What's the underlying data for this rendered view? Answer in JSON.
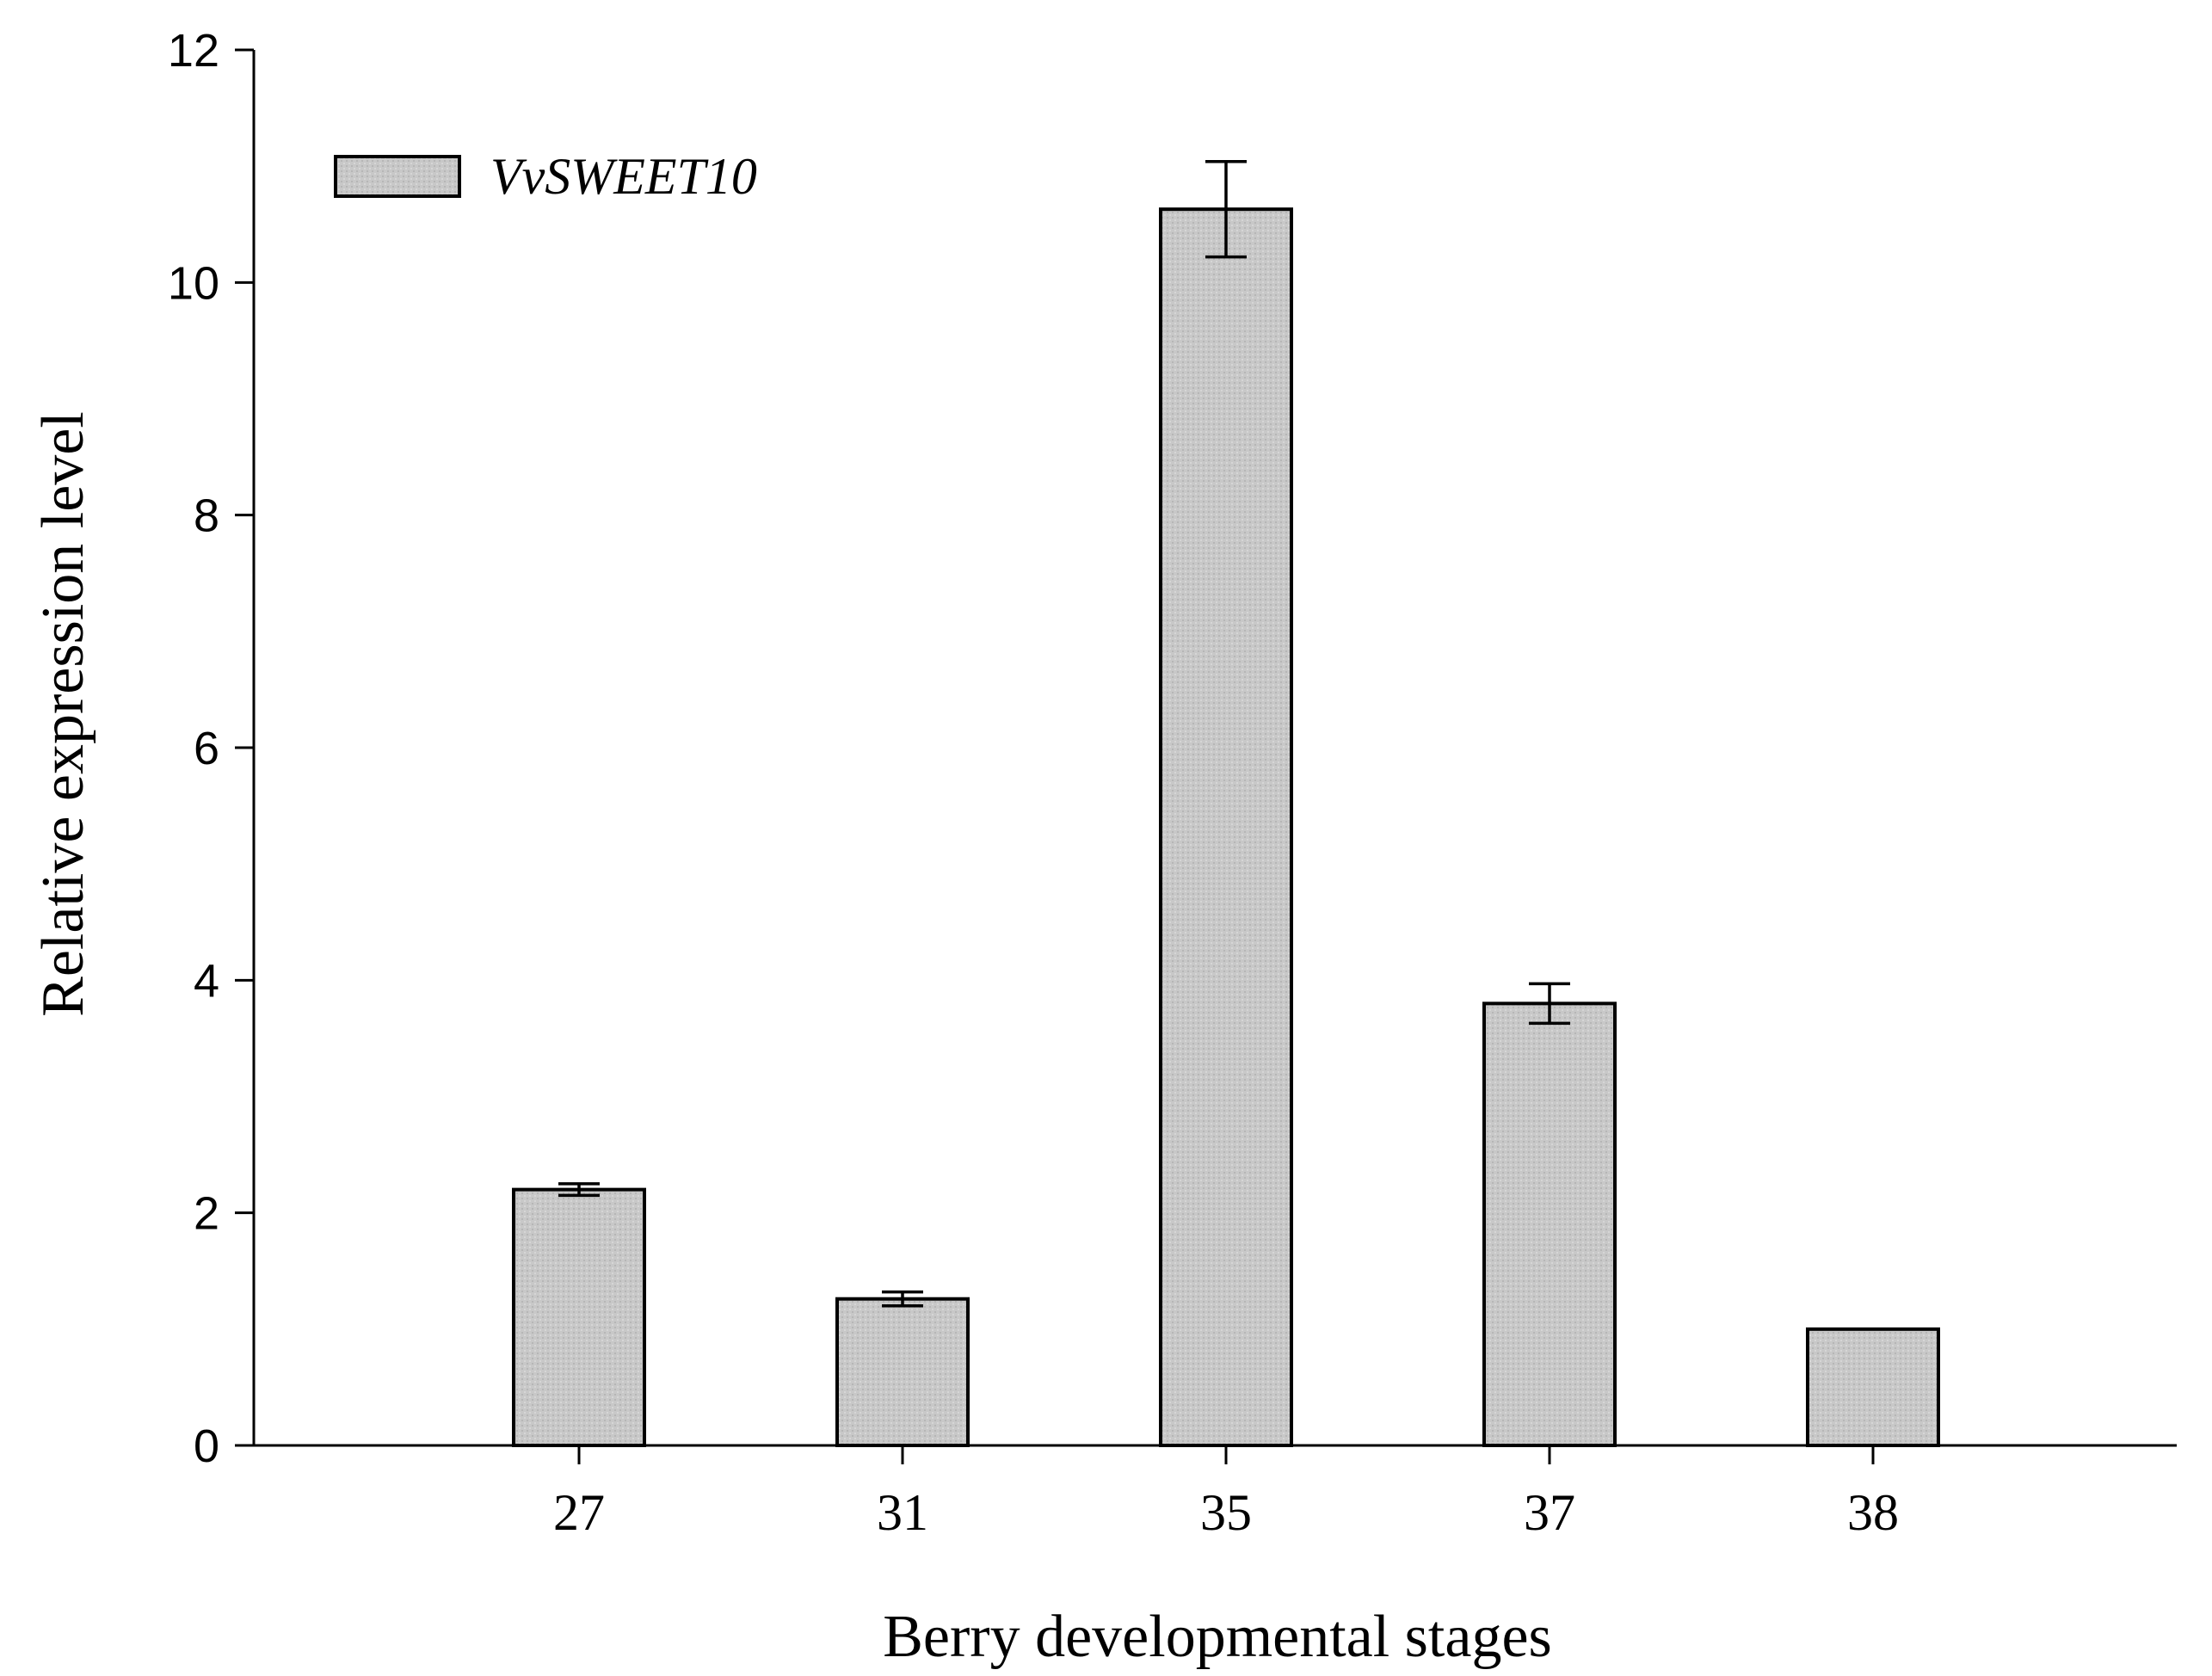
{
  "chart_data": {
    "type": "bar",
    "title": "",
    "xlabel": "Berry developmental stages",
    "ylabel": "Relative expression level",
    "categories": [
      "27",
      "31",
      "35",
      "37",
      "38"
    ],
    "series": [
      {
        "name": "VvSWEET10",
        "values": [
          2.2,
          1.26,
          10.63,
          3.8,
          1.0
        ],
        "errors": [
          0.05,
          0.06,
          0.41,
          0.17,
          0.0
        ],
        "color": "#c8c8c8"
      }
    ],
    "ylim": [
      0,
      12
    ],
    "yticks": [
      "0",
      "2",
      "4",
      "6",
      "8",
      "10",
      "12"
    ],
    "grid": false,
    "legend_position": "top-left"
  }
}
